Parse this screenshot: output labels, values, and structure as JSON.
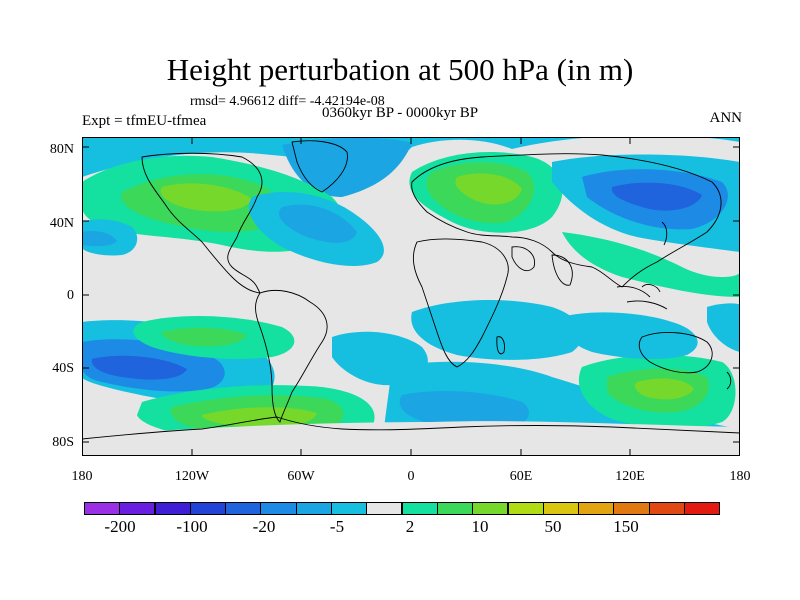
{
  "title": "Height perturbation at 500 hPa (in m)",
  "stats_line": "rmsd= 4.96612 diff= -4.42194e-08",
  "period": "0360kyr BP - 0000kyr BP",
  "experiment": "Expt = tfmEU-tfmea",
  "season": "ANN",
  "lat_ticks": [
    "80N",
    "40N",
    "0",
    "40S",
    "80S"
  ],
  "lon_ticks": [
    "180",
    "120W",
    "60W",
    "0",
    "60E",
    "120E",
    "180"
  ],
  "colorbar": {
    "labels": [
      "-200",
      "-100",
      "-20",
      "-5",
      "2",
      "10",
      "50",
      "150"
    ],
    "colors": [
      "#9a2fe6",
      "#6a1ee0",
      "#3f1ed6",
      "#2143d6",
      "#1f64dd",
      "#1d8ae6",
      "#1ba6e3",
      "#16bfe0",
      "#e6e6e6",
      "#14e0a0",
      "#3cd85a",
      "#76d82a",
      "#b0dc14",
      "#d8c610",
      "#e2a410",
      "#e07a10",
      "#e04a12",
      "#e31a10"
    ]
  },
  "field_colors": {
    "land_line": "#000000",
    "neutral": "#e6e6e6"
  }
}
